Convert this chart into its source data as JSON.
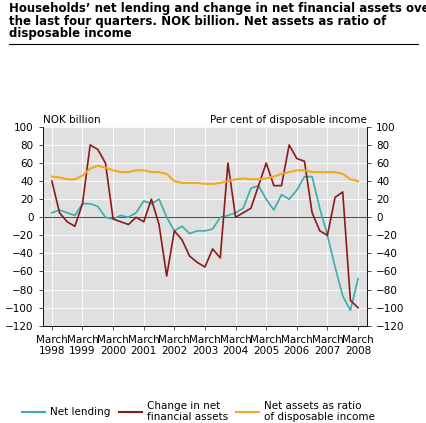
{
  "title_line1": "Households’ net lending and change in net financial assets over",
  "title_line2": "the last four quarters. NOK billion. Net assets as ratio of",
  "title_line3": "disposable income",
  "label_left": "NOK billion",
  "label_right": "Per cent of disposable income",
  "x_labels": [
    "March\n1998",
    "March\n1999",
    "March\n2000",
    "March\n2001",
    "March\n2002",
    "March\n2003",
    "March\n2004",
    "March\n2005",
    "March\n2006",
    "March\n2007",
    "March\n2008"
  ],
  "x_values": [
    0,
    1,
    2,
    3,
    4,
    5,
    6,
    7,
    8,
    9,
    10
  ],
  "ylim": [
    -120,
    100
  ],
  "yticks": [
    -120,
    -100,
    -80,
    -60,
    -40,
    -20,
    0,
    20,
    40,
    60,
    80,
    100
  ],
  "net_lending": {
    "label": "Net lending",
    "color": "#3aadad",
    "data_x": [
      0,
      0.25,
      0.5,
      0.75,
      1,
      1.25,
      1.5,
      1.75,
      2,
      2.25,
      2.5,
      2.75,
      3,
      3.25,
      3.5,
      3.75,
      4,
      4.25,
      4.5,
      4.75,
      5,
      5.25,
      5.5,
      5.75,
      6,
      6.25,
      6.5,
      6.75,
      7,
      7.25,
      7.5,
      7.75,
      8,
      8.25,
      8.5,
      8.75,
      9,
      9.25,
      9.5,
      9.75,
      10
    ],
    "data_y": [
      5,
      8,
      5,
      2,
      15,
      15,
      12,
      0,
      -2,
      2,
      0,
      5,
      18,
      15,
      20,
      0,
      -15,
      -10,
      -18,
      -15,
      -15,
      -13,
      0,
      2,
      5,
      10,
      32,
      35,
      20,
      8,
      25,
      20,
      30,
      45,
      45,
      10,
      -20,
      -55,
      -87,
      -103,
      -68
    ]
  },
  "net_financial_assets": {
    "label_line1": "Change in net",
    "label_line2": "financial assets",
    "label": "Change in net\nfinancial assets",
    "color": "#8b1a1a",
    "data_x": [
      0,
      0.25,
      0.5,
      0.75,
      1,
      1.25,
      1.5,
      1.75,
      2,
      2.25,
      2.5,
      2.75,
      3,
      3.25,
      3.5,
      3.75,
      4,
      4.25,
      4.5,
      4.75,
      5,
      5.25,
      5.5,
      5.75,
      6,
      6.25,
      6.5,
      6.75,
      7,
      7.25,
      7.5,
      7.75,
      8,
      8.25,
      8.5,
      8.75,
      9,
      9.25,
      9.5,
      9.75,
      10
    ],
    "data_y": [
      40,
      5,
      -5,
      -10,
      15,
      80,
      75,
      60,
      -2,
      -5,
      -8,
      0,
      -5,
      20,
      -8,
      -65,
      -15,
      -25,
      -43,
      -50,
      -55,
      -35,
      -45,
      60,
      0,
      5,
      10,
      35,
      60,
      35,
      35,
      80,
      65,
      62,
      5,
      -15,
      -20,
      22,
      28,
      -92,
      -100
    ]
  },
  "net_assets_ratio": {
    "label": "Net assets as ratio\nof disposable income",
    "color": "#f5a623",
    "data_x": [
      0,
      0.25,
      0.5,
      0.75,
      1,
      1.25,
      1.5,
      1.75,
      2,
      2.25,
      2.5,
      2.75,
      3,
      3.25,
      3.5,
      3.75,
      4,
      4.25,
      4.5,
      4.75,
      5,
      5.25,
      5.5,
      5.75,
      6,
      6.25,
      6.5,
      6.75,
      7,
      7.25,
      7.5,
      7.75,
      8,
      8.25,
      8.5,
      8.75,
      9,
      9.25,
      9.5,
      9.75,
      10
    ],
    "data_y": [
      45,
      44,
      42,
      42,
      46,
      54,
      57,
      55,
      52,
      50,
      50,
      52,
      52,
      50,
      50,
      48,
      40,
      38,
      38,
      38,
      37,
      37,
      38,
      40,
      42,
      43,
      42,
      42,
      43,
      45,
      48,
      50,
      52,
      52,
      50,
      50,
      50,
      50,
      48,
      42,
      40
    ]
  },
  "background_color": "#e0e0e0",
  "title_fontsize": 8.5,
  "axis_fontsize": 7.5,
  "tick_fontsize": 7.5
}
